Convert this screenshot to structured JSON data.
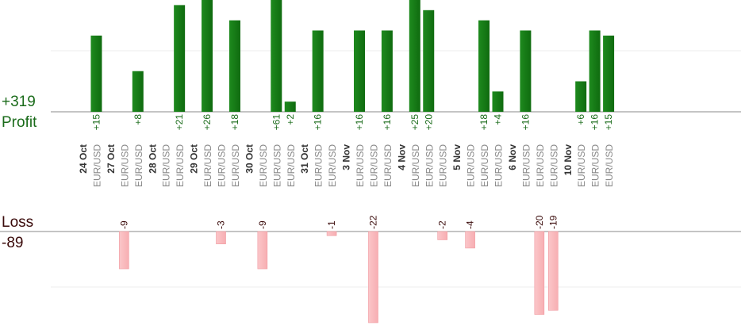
{
  "summary": {
    "profit_total": "+319",
    "profit_label": "Profit",
    "loss_label": "Loss",
    "loss_total": "-89"
  },
  "colors": {
    "profit_bar": "#0f6b0f",
    "loss_bar": "#f7aeb2",
    "profit_text": "#1a6b1a",
    "loss_text": "#3a0a0a",
    "date_text": "#333333",
    "pair_text": "#888888"
  },
  "chart_data": {
    "type": "bar",
    "y_profit_range": [
      0,
      22
    ],
    "y_loss_range": [
      0,
      22
    ],
    "categories": [
      {
        "label": "24 Oct",
        "kind": "date"
      },
      {
        "label": "EUR/USD",
        "kind": "trade",
        "profit": 15,
        "profit_label": "+15"
      },
      {
        "label": "27 Oct",
        "kind": "date"
      },
      {
        "label": "EUR/USD",
        "kind": "trade",
        "loss": 9,
        "loss_label": "-9"
      },
      {
        "label": "EUR/USD",
        "kind": "trade",
        "profit": 8,
        "profit_label": "+8"
      },
      {
        "label": "28 Oct",
        "kind": "date"
      },
      {
        "label": "EUR/USD",
        "kind": "trade"
      },
      {
        "label": "EUR/USD",
        "kind": "trade",
        "profit": 21,
        "profit_label": "+21"
      },
      {
        "label": "29 Oct",
        "kind": "date"
      },
      {
        "label": "EUR/USD",
        "kind": "trade",
        "profit": 26,
        "profit_label": "+26"
      },
      {
        "label": "EUR/USD",
        "kind": "trade",
        "loss": 3,
        "loss_label": "-3"
      },
      {
        "label": "EUR/USD",
        "kind": "trade",
        "profit": 18,
        "profit_label": "+18"
      },
      {
        "label": "30 Oct",
        "kind": "date"
      },
      {
        "label": "EUR/USD",
        "kind": "trade",
        "loss": 9,
        "loss_label": "-9"
      },
      {
        "label": "EUR/USD",
        "kind": "trade",
        "profit": 61,
        "profit_label": "+61"
      },
      {
        "label": "EUR/USD",
        "kind": "trade",
        "profit": 2,
        "profit_label": "+2"
      },
      {
        "label": "31 Oct",
        "kind": "date"
      },
      {
        "label": "EUR/USD",
        "kind": "trade",
        "profit": 16,
        "profit_label": "+16"
      },
      {
        "label": "EUR/USD",
        "kind": "trade",
        "loss": 1,
        "loss_label": "-1"
      },
      {
        "label": "3 Nov",
        "kind": "date"
      },
      {
        "label": "EUR/USD",
        "kind": "trade",
        "profit": 16,
        "profit_label": "+16"
      },
      {
        "label": "EUR/USD",
        "kind": "trade",
        "loss": 22,
        "loss_label": "-22"
      },
      {
        "label": "EUR/USD",
        "kind": "trade",
        "profit": 16,
        "profit_label": "+16"
      },
      {
        "label": "4 Nov",
        "kind": "date"
      },
      {
        "label": "EUR/USD",
        "kind": "trade",
        "profit": 25,
        "profit_label": "+25"
      },
      {
        "label": "EUR/USD",
        "kind": "trade",
        "profit": 20,
        "profit_label": "+20"
      },
      {
        "label": "EUR/USD",
        "kind": "trade",
        "loss": 2,
        "loss_label": "-2"
      },
      {
        "label": "5 Nov",
        "kind": "date"
      },
      {
        "label": "EUR/USD",
        "kind": "trade",
        "loss": 4,
        "loss_label": "-4"
      },
      {
        "label": "EUR/USD",
        "kind": "trade",
        "profit": 18,
        "profit_label": "+18"
      },
      {
        "label": "EUR/USD",
        "kind": "trade",
        "profit": 4,
        "profit_label": "+4"
      },
      {
        "label": "6 Nov",
        "kind": "date"
      },
      {
        "label": "EUR/USD",
        "kind": "trade",
        "profit": 16,
        "profit_label": "+16"
      },
      {
        "label": "EUR/USD",
        "kind": "trade",
        "loss": 20,
        "loss_label": "-20"
      },
      {
        "label": "EUR/USD",
        "kind": "trade",
        "loss": 19,
        "loss_label": "-19"
      },
      {
        "label": "10 Nov",
        "kind": "date"
      },
      {
        "label": "EUR/USD",
        "kind": "trade",
        "profit": 6,
        "profit_label": "+6"
      },
      {
        "label": "EUR/USD",
        "kind": "trade",
        "profit": 16,
        "profit_label": "+16"
      },
      {
        "label": "EUR/USD",
        "kind": "trade",
        "profit": 15,
        "profit_label": "+15"
      }
    ]
  }
}
